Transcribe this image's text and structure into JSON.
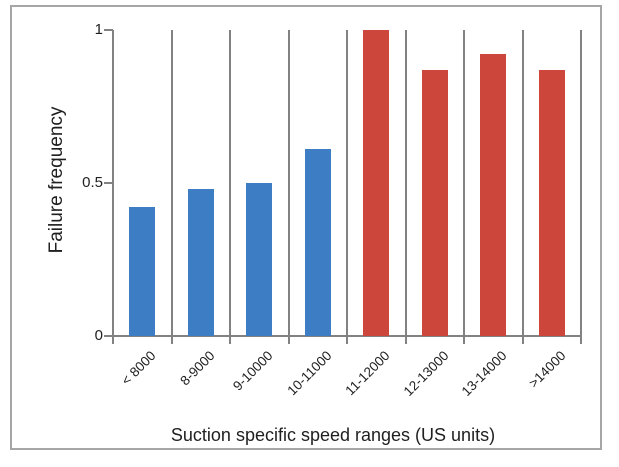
{
  "frame": {
    "border_color": "#a6a6a6",
    "background_color": "#ffffff"
  },
  "chart_data": {
    "type": "bar",
    "title": "",
    "xlabel": "Suction specific speed ranges (US units)",
    "ylabel": "Failure frequency",
    "categories": [
      "< 8000",
      "8-9000",
      "9-10000",
      "10-11000",
      "11-12000",
      "12-13000",
      "13-14000",
      ">14000"
    ],
    "values": [
      0.42,
      0.48,
      0.5,
      0.61,
      1.0,
      0.87,
      0.92,
      0.87
    ],
    "bar_colors": [
      "#3c7dc3",
      "#3c7dc3",
      "#3c7dc3",
      "#3c7dc3",
      "#cd463c",
      "#cd463c",
      "#cd463c",
      "#cd463c"
    ],
    "group_colors": {
      "low_speed_blue": "#3c7dc3",
      "high_speed_red": "#cd463c"
    },
    "yticks": [
      {
        "value": 0,
        "label": "0"
      },
      {
        "value": 0.5,
        "label": "0.5"
      },
      {
        "value": 1,
        "label": "1"
      }
    ],
    "ylim": [
      0,
      1
    ],
    "grid": "vertical-category-separators",
    "axis_color": "#828282",
    "text_color": "#1f1f1f",
    "legend": "none"
  }
}
